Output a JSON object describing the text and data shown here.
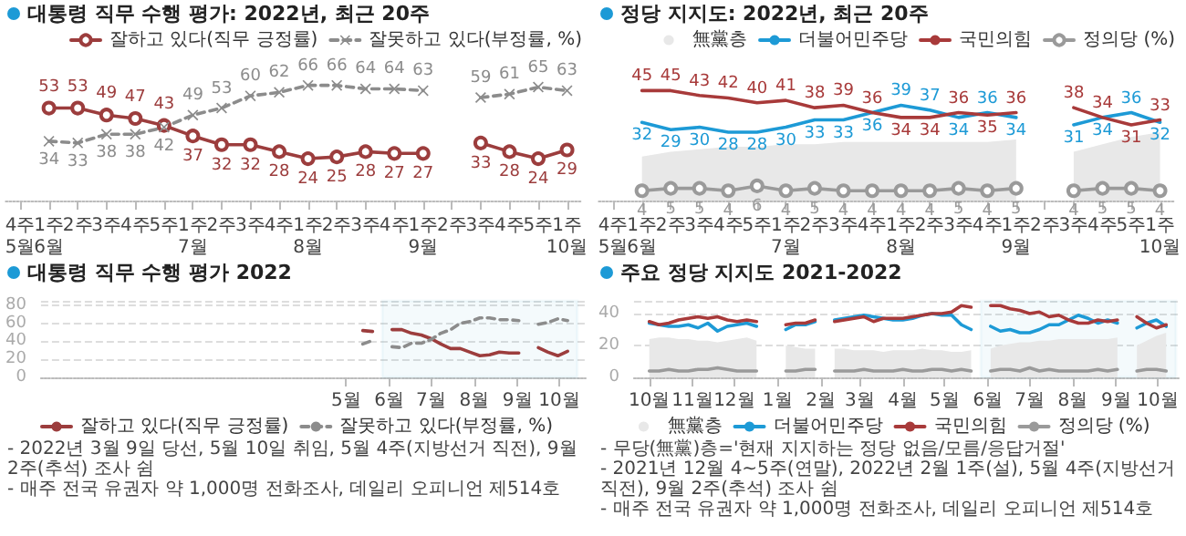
{
  "chart_data": [
    {
      "type": "line",
      "title": "대통령 직무 수행 평가: 2022년, 최근 20주",
      "categories": [
        "4주\n5월",
        "1주\n6월",
        "2주",
        "3주",
        "4주",
        "5주",
        "1주\n7월",
        "2주",
        "3주",
        "4주",
        "1주\n8월",
        "2주",
        "3주",
        "4주",
        "1주\n9월",
        "2주",
        "3주",
        "4주",
        "5주",
        "1주\n10월"
      ],
      "series": [
        {
          "name": "잘하고 있다(직무 긍정률)",
          "color": "#9c3d3d",
          "marker": "circle",
          "line_style": "solid",
          "values": [
            null,
            53,
            53,
            49,
            47,
            43,
            37,
            32,
            32,
            28,
            24,
            25,
            28,
            27,
            27,
            null,
            33,
            28,
            24,
            29
          ]
        },
        {
          "name": "잘못하고 있다(부정률, %)",
          "color": "#8c8c8c",
          "marker": "cross",
          "line_style": "dashed",
          "values": [
            null,
            34,
            33,
            38,
            38,
            42,
            49,
            53,
            60,
            62,
            66,
            66,
            64,
            64,
            63,
            null,
            59,
            61,
            65,
            63
          ]
        }
      ],
      "data_labels": true,
      "legend": "top right",
      "tick_labels": "x"
    },
    {
      "type": "line",
      "title": "정당 지지도: 2022년, 최근 20주",
      "categories": [
        "4주\n5월",
        "1주\n6월",
        "2주",
        "3주",
        "4주",
        "5주",
        "1주\n7월",
        "2주",
        "3주",
        "4주",
        "1주\n8월",
        "2주",
        "3주",
        "4주",
        "1주\n9월",
        "2주",
        "3주",
        "4주",
        "5주",
        "1주\n10월"
      ],
      "series": [
        {
          "name": "無黨층",
          "type": "area",
          "color": "#e8e8e8",
          "marker": "none",
          "values": [
            null,
            18,
            20,
            21,
            22,
            22,
            23,
            23,
            24,
            24,
            24,
            24,
            24,
            24,
            25,
            null,
            20,
            23,
            26,
            28
          ]
        },
        {
          "name": "더불어민주당",
          "color": "#1d9ad6",
          "marker": "none",
          "line_style": "solid",
          "values": [
            null,
            32,
            29,
            30,
            28,
            28,
            30,
            33,
            33,
            36,
            39,
            37,
            34,
            36,
            34,
            null,
            31,
            34,
            36,
            32
          ],
          "value_labels": [
            null,
            "32",
            "29",
            "30",
            "28",
            "28",
            "30",
            "33",
            "33",
            "36",
            "39",
            "37",
            "34",
            "36",
            "34",
            null,
            "31",
            "34",
            "36",
            "32"
          ]
        },
        {
          "name": "국민의힘",
          "color": "#a83a3a",
          "marker": "none",
          "line_style": "solid",
          "values": [
            null,
            45,
            45,
            43,
            42,
            40,
            41,
            38,
            39,
            36,
            34,
            34,
            36,
            35,
            36,
            null,
            38,
            34,
            31,
            33
          ],
          "value_labels": [
            null,
            "45",
            "45",
            "43",
            "42",
            "40",
            "41",
            "38",
            "39",
            "36",
            "34",
            "34",
            "36",
            "35",
            "36",
            null,
            "38",
            "34",
            "31",
            "33"
          ]
        },
        {
          "name": "정의당 (%)",
          "color": "#9a9a9a",
          "marker": "circle",
          "line_style": "solid",
          "values": [
            null,
            4,
            5,
            5,
            4,
            6,
            4,
            5,
            4,
            4,
            4,
            4,
            5,
            4,
            5,
            null,
            4,
            5,
            5,
            4
          ],
          "value_labels": [
            null,
            "4",
            "5",
            "5",
            "4",
            "6",
            "4",
            "5",
            "4",
            "4",
            "4",
            "4",
            "5",
            "4",
            "5",
            null,
            "4",
            "5",
            "5",
            "4"
          ]
        }
      ],
      "legend": "top right",
      "tick_labels": "x"
    },
    {
      "type": "line",
      "title": "대통령 직무 수행 평가 2022",
      "x": [
        "2022-05-13",
        "2022-05-20",
        "2022-05-27",
        "2022-06-03",
        "2022-06-10",
        "2022-06-17",
        "2022-06-24",
        "2022-07-01",
        "2022-07-08",
        "2022-07-15",
        "2022-07-22",
        "2022-07-29",
        "2022-08-05",
        "2022-08-12",
        "2022-08-19",
        "2022-08-26",
        "2022-09-02",
        "2022-09-09",
        "2022-09-16",
        "2022-09-23",
        "2022-09-30",
        "2022-10-07"
      ],
      "xlim": [
        "2021-09-24",
        "2022-10-20"
      ],
      "xticks": [
        {
          "value": "2022-05-01",
          "label": "5월"
        },
        {
          "value": "2022-06-01",
          "label": "6월"
        },
        {
          "value": "2022-07-01",
          "label": "7월"
        },
        {
          "value": "2022-08-01",
          "label": "8월"
        },
        {
          "value": "2022-09-01",
          "label": "9월"
        },
        {
          "value": "2022-10-01",
          "label": "10월"
        }
      ],
      "ylim": [
        0,
        85
      ],
      "yticks": [
        0,
        20,
        40,
        60,
        80
      ],
      "grid": "y",
      "legend": "bottom",
      "series": [
        {
          "name": "잘하고 있다(직무 긍정률)",
          "color": "#9c3d3d",
          "marker": "none",
          "line_style": "solid",
          "values": [
            52,
            51,
            null,
            53,
            53,
            49,
            47,
            43,
            37,
            32,
            32,
            28,
            24,
            25,
            28,
            27,
            27,
            null,
            33,
            28,
            24,
            29
          ]
        },
        {
          "name": "잘못하고 있다(부정률, %)",
          "color": "#8c8c8c",
          "marker": "none",
          "line_style": "dashed",
          "values": [
            37,
            41,
            null,
            34,
            33,
            38,
            38,
            42,
            49,
            53,
            60,
            62,
            66,
            66,
            64,
            64,
            63,
            null,
            59,
            61,
            65,
            63
          ]
        }
      ],
      "bands": [
        {
          "axis": "x",
          "from": "2022-05-27",
          "to": "2022-10-14",
          "color": "#4bacc6"
        }
      ],
      "annotations": [
        "- 2022년 3월 9일 당선, 5월 10일 취임, 5월 4주(지방선거 직전), 9월 2주(추석) 조사 쉼",
        "- 매주 전국 유권자 약 1,000명 전화조사, 데일리 오피니언 제514호"
      ]
    },
    {
      "type": "line",
      "title": "주요 정당 지지도 2021-2022",
      "x": [
        "2021-10-01",
        "2021-10-08",
        "2021-10-15",
        "2021-10-22",
        "2021-10-29",
        "2021-11-05",
        "2021-11-12",
        "2021-11-19",
        "2021-11-26",
        "2021-12-03",
        "2021-12-10",
        "2021-12-17",
        "2021-12-24",
        "2021-12-31",
        "2022-01-07",
        "2022-01-14",
        "2022-01-21",
        "2022-01-28",
        "2022-02-04",
        "2022-02-11",
        "2022-02-18",
        "2022-02-25",
        "2022-03-04",
        "2022-03-11",
        "2022-03-18",
        "2022-03-25",
        "2022-04-01",
        "2022-04-08",
        "2022-04-15",
        "2022-04-22",
        "2022-04-29",
        "2022-05-06",
        "2022-05-13",
        "2022-05-20",
        "2022-05-27",
        "2022-06-03",
        "2022-06-10",
        "2022-06-17",
        "2022-06-24",
        "2022-07-01",
        "2022-07-08",
        "2022-07-15",
        "2022-07-22",
        "2022-07-29",
        "2022-08-05",
        "2022-08-12",
        "2022-08-19",
        "2022-08-26",
        "2022-09-02",
        "2022-09-09",
        "2022-09-16",
        "2022-09-23",
        "2022-09-30",
        "2022-10-07"
      ],
      "xlim": [
        "2021-09-20",
        "2022-10-16"
      ],
      "xticks": [
        {
          "value": "2021-10-01",
          "label": "10월"
        },
        {
          "value": "2021-11-01",
          "label": "11월"
        },
        {
          "value": "2021-12-01",
          "label": "12월"
        },
        {
          "value": "2022-01-01",
          "label": "1월"
        },
        {
          "value": "2022-02-01",
          "label": "2월"
        },
        {
          "value": "2022-03-01",
          "label": "3월"
        },
        {
          "value": "2022-04-01",
          "label": "4월"
        },
        {
          "value": "2022-05-01",
          "label": "5월"
        },
        {
          "value": "2022-06-01",
          "label": "6월"
        },
        {
          "value": "2022-07-01",
          "label": "7월"
        },
        {
          "value": "2022-08-01",
          "label": "8월"
        },
        {
          "value": "2022-09-01",
          "label": "9월"
        },
        {
          "value": "2022-10-01",
          "label": "10월"
        }
      ],
      "ylim": [
        0,
        48
      ],
      "yticks": [
        0,
        20,
        40
      ],
      "grid": "y",
      "legend": "bottom",
      "series": [
        {
          "name": "無黨층",
          "type": "area",
          "color": "#e8e8e8",
          "marker": "none",
          "values": [
            24,
            25,
            25,
            24,
            24,
            23,
            23,
            22,
            23,
            24,
            25,
            23,
            null,
            null,
            20,
            19,
            18,
            18,
            null,
            18,
            18,
            17,
            17,
            17,
            16,
            17,
            17,
            17,
            18,
            17,
            17,
            16,
            16,
            17,
            null,
            18,
            20,
            21,
            22,
            22,
            23,
            23,
            24,
            24,
            24,
            24,
            24,
            24,
            25,
            null,
            20,
            23,
            26,
            28
          ]
        },
        {
          "name": "더불어민주당",
          "color": "#1d9ad6",
          "marker": "none",
          "line_style": "solid",
          "values": [
            34,
            33,
            32,
            32,
            33,
            31,
            34,
            29,
            32,
            33,
            34,
            32,
            null,
            null,
            30,
            33,
            33,
            35,
            null,
            36,
            37,
            38,
            39,
            38,
            37,
            36,
            36,
            37,
            39,
            40,
            39,
            39,
            33,
            30,
            null,
            32,
            29,
            30,
            28,
            28,
            30,
            33,
            33,
            36,
            39,
            37,
            34,
            36,
            34,
            null,
            31,
            34,
            36,
            32
          ]
        },
        {
          "name": "국민의힘",
          "color": "#a83a3a",
          "marker": "none",
          "line_style": "solid",
          "values": [
            35,
            33,
            34,
            36,
            37,
            38,
            37,
            38,
            36,
            35,
            36,
            35,
            null,
            null,
            33,
            34,
            34,
            36,
            null,
            35,
            36,
            37,
            38,
            35,
            37,
            37,
            37,
            38,
            39,
            40,
            40,
            41,
            45,
            44,
            null,
            45,
            45,
            43,
            42,
            40,
            41,
            38,
            39,
            36,
            34,
            34,
            36,
            35,
            36,
            null,
            38,
            34,
            31,
            33
          ]
        },
        {
          "name": "정의당 (%)",
          "color": "#9a9a9a",
          "marker": "none",
          "line_style": "solid",
          "values": [
            4,
            4,
            5,
            4,
            4,
            5,
            5,
            6,
            5,
            4,
            4,
            4,
            null,
            null,
            4,
            4,
            5,
            5,
            null,
            4,
            4,
            4,
            5,
            4,
            4,
            4,
            5,
            4,
            4,
            5,
            5,
            4,
            5,
            4,
            null,
            4,
            5,
            5,
            4,
            6,
            4,
            5,
            4,
            4,
            4,
            4,
            5,
            4,
            5,
            null,
            4,
            5,
            5,
            4
          ]
        }
      ],
      "bands": [
        {
          "axis": "x",
          "from": "2022-05-27",
          "to": "2022-10-14",
          "color": "#4bacc6"
        }
      ],
      "annotations": [
        "- 무당(無黨)층='현재 지지하는 정당 없음/모름/응답거절'",
        "- 2021년 12월 4~5주(연말), 2022년 2월 1주(설), 5월 4주(지방선거 직전), 9월 2주(추석) 조사 쉼",
        "- 매주 전국 유권자 약 1,000명 전화조사, 데일리 오피니언 제514호"
      ]
    }
  ]
}
